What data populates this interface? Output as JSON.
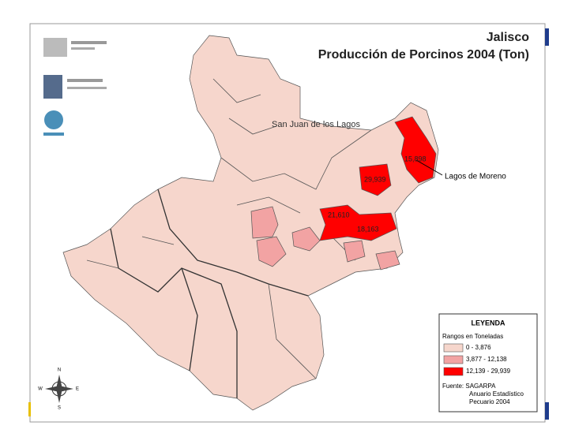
{
  "header": {
    "title": "Jalisco",
    "subtitle": "Producción de Porcinos 2004 (Ton)"
  },
  "places": [
    "San Juan de los Lagos",
    "Lagos de Moreno"
  ],
  "value_labels": [
    "15,898",
    "29,939",
    "21,610",
    "18,163"
  ],
  "legend": {
    "title": "LEYENDA",
    "subtitle": "Rangos en Toneladas",
    "items": [
      {
        "label": "0 - 3,876",
        "color": "#f6d6cc"
      },
      {
        "label": "3,877 - 12,138",
        "color": "#f2a3a3"
      },
      {
        "label": "12,139 - 29,939",
        "color": "#ff0000"
      }
    ],
    "source": [
      "Fuente: SAGARPA",
      "Anuario Estadístico",
      "Pecuario 2004"
    ]
  },
  "compass": [
    "N",
    "W",
    "E",
    "S"
  ]
}
